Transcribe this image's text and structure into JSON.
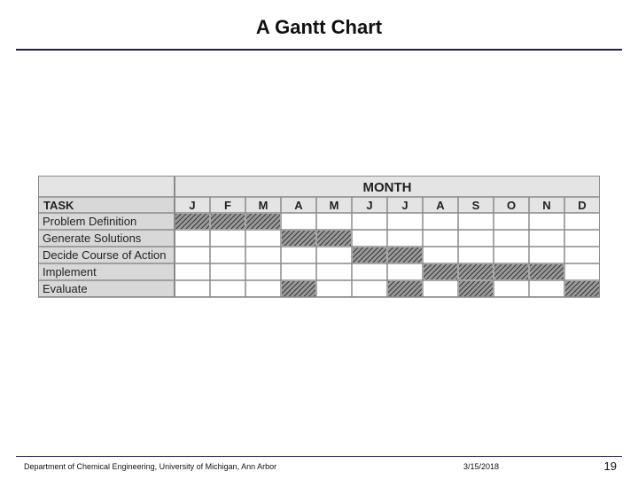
{
  "title": "A Gantt Chart",
  "footer": {
    "department": "Department of Chemical Engineering, University of Michigan, Ann Arbor",
    "date": "3/15/2018",
    "page": "19"
  },
  "colors": {
    "rule": "#1f1f4f",
    "header_fill": "#e4e4e4",
    "task_fill": "#d8d8d8",
    "grid": "#8a8a8a",
    "bar_hatch": "#3a3a3a"
  },
  "chart_data": {
    "type": "table",
    "month_header": "MONTH",
    "task_header": "TASK",
    "months": [
      "J",
      "F",
      "M",
      "A",
      "M",
      "J",
      "J",
      "A",
      "S",
      "O",
      "N",
      "D"
    ],
    "tasks": [
      {
        "name": "Problem Definition",
        "active": [
          0,
          1,
          2
        ]
      },
      {
        "name": "Generate Solutions",
        "active": [
          3,
          4
        ]
      },
      {
        "name": "Decide Course of Action",
        "active": [
          5,
          6
        ]
      },
      {
        "name": "Implement",
        "active": [
          7,
          8,
          9,
          10
        ]
      },
      {
        "name": "Evaluate",
        "active": [
          3,
          6,
          8,
          11
        ]
      }
    ]
  }
}
